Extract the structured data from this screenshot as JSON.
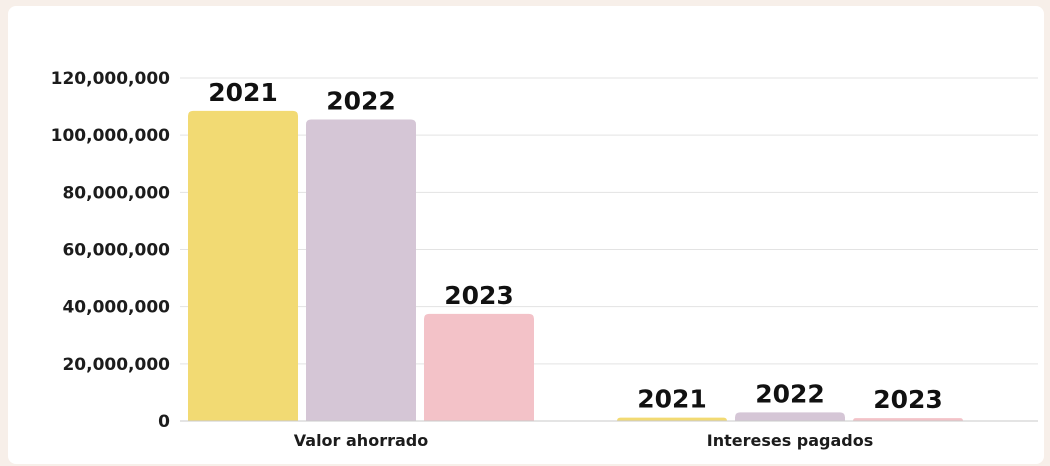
{
  "chart_data": {
    "type": "bar",
    "categories": [
      "Valor ahorrado",
      "Intereses pagados"
    ],
    "series": [
      {
        "label": "2021",
        "color": "#f2da73",
        "values": [
          108500000,
          1200000
        ]
      },
      {
        "label": "2022",
        "color": "#d5c6d6",
        "values": [
          105500000,
          3000000
        ]
      },
      {
        "label": "2023",
        "color": "#f3c2c8",
        "values": [
          37500000,
          1000000
        ]
      }
    ],
    "data_labels": true,
    "title": "",
    "xlabel": "",
    "ylabel": "",
    "ylim": [
      0,
      120000000
    ],
    "yticks": [
      "0",
      "20,000,000",
      "40,000,000",
      "60,000,000",
      "80,000,000",
      "100,000,000",
      "120,000,000"
    ],
    "grid": true,
    "legend": "none"
  }
}
